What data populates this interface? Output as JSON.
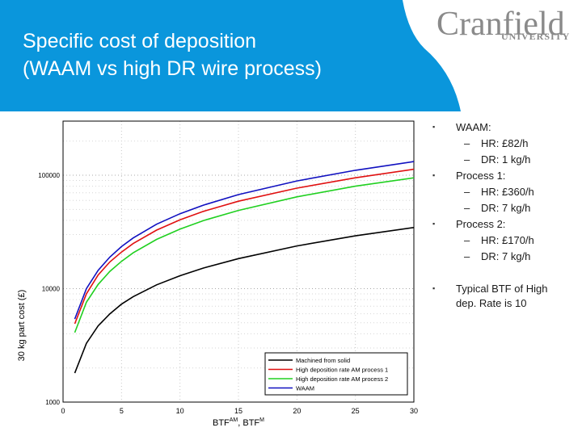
{
  "slide": {
    "title_line1": "Specific cost of deposition",
    "title_line2": "(WAAM vs high DR wire process)",
    "logo_main": "Cranfield",
    "logo_sub": "UNIVERSITY",
    "bullets": {
      "waam": "WAAM:",
      "waam_hr": "HR: £82/h",
      "waam_dr": "DR: 1 kg/h",
      "p1": "Process 1:",
      "p1_hr": "HR: £360/h",
      "p1_dr": "DR: 7 kg/h",
      "p2": "Process 2:",
      "p2_hr": "HR: £170/h",
      "p2_dr": "DR: 7 kg/h",
      "typical_line1": "Typical BTF of High",
      "typical_line2": "dep. Rate is 10"
    },
    "bullet_mark": "▪",
    "dash_mark": "–"
  },
  "colors": {
    "header": "#0a96dc",
    "machined": "#000000",
    "process1": "#e01010",
    "process2": "#20d020",
    "waam": "#1010c0"
  },
  "chart_data": {
    "type": "line",
    "xlabel": "BTFAM, BTFM",
    "ylabel": "30 kg part cost (£)",
    "xlim": [
      0,
      30
    ],
    "ylim": [
      1000,
      300000
    ],
    "y_scale": "log",
    "grid": true,
    "x_ticks": [
      "0",
      "5",
      "10",
      "15",
      "20",
      "25",
      "30"
    ],
    "y_ticks": [
      "1000",
      "10000",
      "100000"
    ],
    "legend_position": "bottom-right",
    "x": [
      1,
      2,
      3,
      4,
      5,
      6,
      8,
      10,
      12,
      15,
      20,
      25,
      30
    ],
    "series": [
      {
        "name": "Machined from solid",
        "color": "#000000",
        "values": [
          1800,
          3300,
          4700,
          6000,
          7300,
          8500,
          10800,
          13000,
          15200,
          18400,
          23800,
          29200,
          34600
        ]
      },
      {
        "name": "High deposition rate AM process 1",
        "color": "#e01010",
        "values": [
          4900,
          9000,
          13200,
          17200,
          21000,
          25000,
          32800,
          40400,
          48000,
          59000,
          77000,
          95000,
          113000
        ]
      },
      {
        "name": "High deposition rate AM process 2",
        "color": "#20d020",
        "values": [
          4100,
          7600,
          10900,
          14200,
          17400,
          20700,
          27200,
          33500,
          39800,
          49000,
          64500,
          80000,
          95000
        ]
      },
      {
        "name": "WAAM",
        "color": "#1010c0",
        "values": [
          5400,
          10000,
          14500,
          19000,
          23500,
          28000,
          37000,
          45800,
          54500,
          67500,
          89000,
          110500,
          132000
        ]
      }
    ]
  }
}
